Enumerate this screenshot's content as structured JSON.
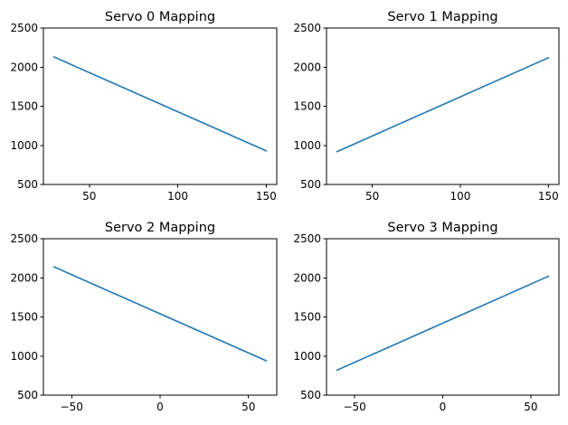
{
  "chart_data": [
    {
      "type": "line",
      "title": "Servo 0 Mapping",
      "xlabel": "",
      "ylabel": "",
      "xlim": [
        24,
        156
      ],
      "ylim": [
        500,
        2500
      ],
      "xticks": [
        50,
        100,
        150
      ],
      "yticks": [
        500,
        1000,
        1500,
        2000,
        2500
      ],
      "grid": false,
      "color": "#1f77b4",
      "series": [
        {
          "x": [
            30,
            150
          ],
          "y": [
            2130,
            930
          ]
        }
      ]
    },
    {
      "type": "line",
      "title": "Servo 1 Mapping",
      "xlabel": "",
      "ylabel": "",
      "xlim": [
        24,
        156
      ],
      "ylim": [
        500,
        2500
      ],
      "xticks": [
        50,
        100,
        150
      ],
      "yticks": [
        500,
        1000,
        1500,
        2000,
        2500
      ],
      "grid": false,
      "color": "#1f77b4",
      "series": [
        {
          "x": [
            30,
            150
          ],
          "y": [
            920,
            2120
          ]
        }
      ]
    },
    {
      "type": "line",
      "title": "Servo 2 Mapping",
      "xlabel": "",
      "ylabel": "",
      "xlim": [
        -66,
        66
      ],
      "ylim": [
        500,
        2500
      ],
      "xticks": [
        -50,
        0,
        50
      ],
      "yticks": [
        500,
        1000,
        1500,
        2000,
        2500
      ],
      "grid": false,
      "color": "#1f77b4",
      "series": [
        {
          "x": [
            -60,
            60
          ],
          "y": [
            2140,
            940
          ]
        }
      ]
    },
    {
      "type": "line",
      "title": "Servo 3 Mapping",
      "xlabel": "",
      "ylabel": "",
      "xlim": [
        -66,
        66
      ],
      "ylim": [
        500,
        2500
      ],
      "xticks": [
        -50,
        0,
        50
      ],
      "yticks": [
        500,
        1000,
        1500,
        2000,
        2500
      ],
      "grid": false,
      "color": "#1f77b4",
      "series": [
        {
          "x": [
            -60,
            60
          ],
          "y": [
            820,
            2020
          ]
        }
      ]
    }
  ]
}
